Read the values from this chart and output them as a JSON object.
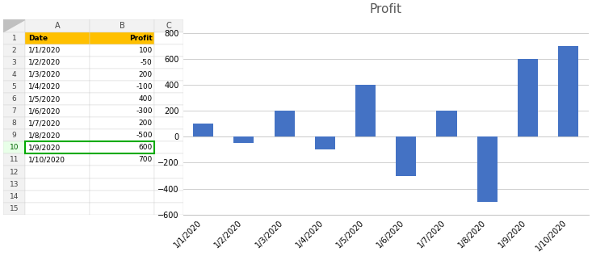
{
  "dates": [
    "1/1/2020",
    "1/2/2020",
    "1/3/2020",
    "1/4/2020",
    "1/5/2020",
    "1/6/2020",
    "1/7/2020",
    "1/8/2020",
    "1/9/2020",
    "1/10/2020"
  ],
  "values": [
    100,
    -50,
    200,
    -100,
    400,
    -300,
    200,
    -500,
    600,
    700
  ],
  "title": "Profit",
  "bar_color": "#4472C4",
  "background_color": "#ffffff",
  "excel_bg": "#f2f2f2",
  "excel_header_bg": "#f2f2f2",
  "col_header_bg": "#f2f2f2",
  "row_header_bg": "#f2f2f2",
  "header_bg_A": "#FFC000",
  "header_bg_B": "#FFC000",
  "cell_border": "#d0d0d0",
  "selected_row_color": "#e6f2e6",
  "ylim": [
    -600,
    900
  ],
  "yticks": [
    -600,
    -400,
    -200,
    0,
    200,
    400,
    600,
    800
  ],
  "title_fontsize": 11,
  "tick_fontsize": 7,
  "grid_color": "#c8c8c8",
  "col_headers": [
    "",
    "A",
    "B",
    "C"
  ],
  "row_headers": [
    "1",
    "2",
    "3",
    "4",
    "5",
    "6",
    "7",
    "8",
    "9",
    "10",
    "11",
    "12",
    "13",
    "14",
    "15"
  ],
  "table_dates": [
    "Date",
    "1/1/2020",
    "1/2/2020",
    "1/3/2020",
    "1/4/2020",
    "1/5/2020",
    "1/6/2020",
    "1/7/2020",
    "1/8/2020",
    "1/9/2020",
    "1/10/2020",
    "",
    "",
    "",
    ""
  ],
  "table_profit": [
    "Profit",
    "100",
    "-50",
    "200",
    "-100",
    "400",
    "-300",
    "200",
    "-500",
    "600",
    "700",
    "",
    "",
    "",
    ""
  ]
}
